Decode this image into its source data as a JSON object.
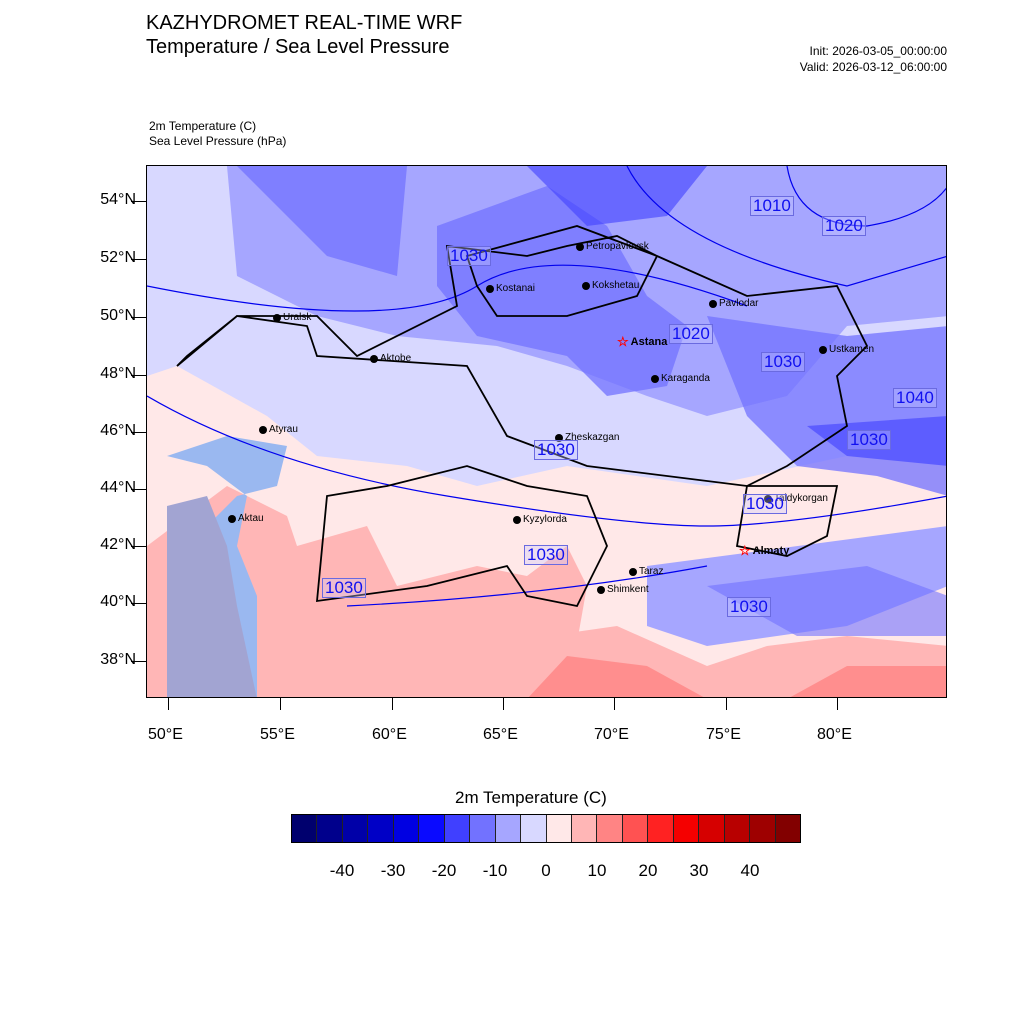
{
  "header": {
    "title": "KAZHYDROMET REAL-TIME WRF",
    "subtitle": "Temperature / Sea Level Pressure",
    "init": "Init: 2026-03-05_00:00:00",
    "valid": "Valid: 2026-03-12_06:00:00"
  },
  "fields": {
    "primary": "2m Temperature   (C)",
    "secondary": "Sea Level Pressure   (hPa)"
  },
  "axes": {
    "lat_labels": [
      "54°N",
      "52°N",
      "50°N",
      "48°N",
      "46°N",
      "44°N",
      "42°N",
      "40°N",
      "38°N"
    ],
    "lon_labels": [
      "50°E",
      "55°E",
      "60°E",
      "65°E",
      "70°E",
      "75°E",
      "80°E"
    ]
  },
  "cities": [
    {
      "name": "Petropavlovsk"
    },
    {
      "name": "Kostanai"
    },
    {
      "name": "Kokshetau"
    },
    {
      "name": "Pavlodar"
    },
    {
      "name": "Uralsk"
    },
    {
      "name": "Astana"
    },
    {
      "name": "Aktobe"
    },
    {
      "name": "Ustkamen"
    },
    {
      "name": "Karaganda"
    },
    {
      "name": "Atyrau"
    },
    {
      "name": "Zheskazgan"
    },
    {
      "name": "Taldykorgan"
    },
    {
      "name": "Aktau"
    },
    {
      "name": "Kyzylorda"
    },
    {
      "name": "Almaty"
    },
    {
      "name": "Taraz"
    },
    {
      "name": "Shimkent"
    }
  ],
  "pressure_labels": [
    "1010",
    "1020",
    "1030",
    "1020",
    "1030",
    "1040",
    "1030",
    "1030",
    "1030",
    "1030",
    "1030",
    "1030"
  ],
  "colorbar": {
    "title": "2m Temperature  (C)",
    "colors": [
      "#00006e",
      "#00008c",
      "#0000a8",
      "#0000c6",
      "#0000e2",
      "#0a0aff",
      "#4040ff",
      "#7272ff",
      "#a6a6ff",
      "#d8d8ff",
      "#ffe8e8",
      "#ffb6b6",
      "#ff8484",
      "#ff5252",
      "#ff2222",
      "#f50000",
      "#d60000",
      "#b80000",
      "#9e0000",
      "#820000"
    ],
    "labels": [
      "-40",
      "-30",
      "-20",
      "-10",
      "0",
      "10",
      "20",
      "30",
      "40"
    ]
  }
}
